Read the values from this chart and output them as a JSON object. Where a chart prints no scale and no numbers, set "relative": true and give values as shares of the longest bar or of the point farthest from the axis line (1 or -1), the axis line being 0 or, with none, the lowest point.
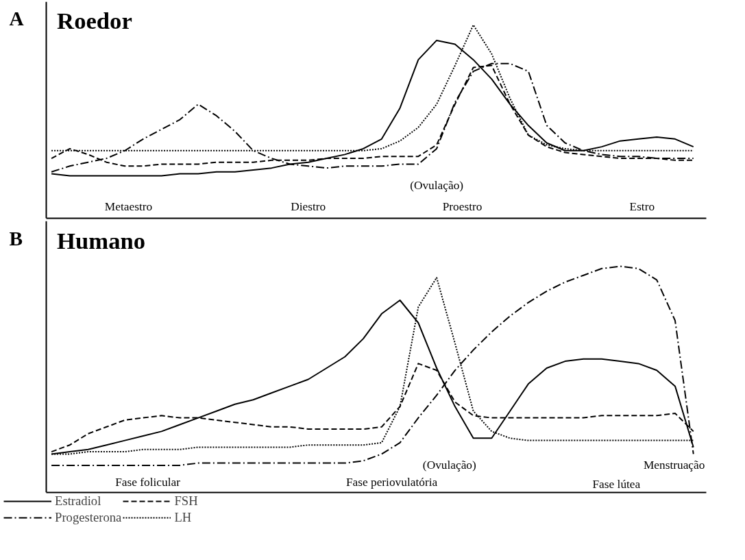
{
  "chart_data": [
    {
      "type": "line",
      "title": "Roedor",
      "relative": true,
      "categories": [
        null,
        null,
        null,
        null,
        null,
        null,
        null,
        null,
        null,
        null,
        null,
        null,
        null,
        null,
        null,
        null,
        null,
        null,
        null,
        null,
        null,
        null,
        null,
        null,
        null,
        null,
        null,
        null,
        null,
        null,
        null,
        null,
        null,
        null,
        null,
        null
      ],
      "annotations": [
        "A",
        "Metaestro",
        "Diestro",
        "Proestro",
        "Estro",
        "(Ovulação)"
      ],
      "series": [
        {
          "color": "#000000",
          "line_style": "solid",
          "values": [
            0.23,
            0.22,
            0.22,
            0.22,
            0.22,
            0.22,
            0.22,
            0.23,
            0.23,
            0.24,
            0.24,
            0.25,
            0.26,
            0.28,
            0.29,
            0.31,
            0.33,
            0.36,
            0.41,
            0.57,
            0.82,
            0.92,
            0.9,
            0.82,
            0.72,
            0.59,
            0.48,
            0.39,
            0.35,
            0.35,
            0.37,
            0.4,
            0.41,
            0.42,
            0.41,
            0.37
          ]
        },
        {
          "color": "#000000",
          "line_style": "dashed",
          "values": [
            0.31,
            0.36,
            0.33,
            0.29,
            0.27,
            0.27,
            0.28,
            0.28,
            0.28,
            0.29,
            0.29,
            0.29,
            0.3,
            0.3,
            0.3,
            0.31,
            0.31,
            0.31,
            0.32,
            0.32,
            0.32,
            0.38,
            0.59,
            0.78,
            0.79,
            0.59,
            0.43,
            0.37,
            0.34,
            0.33,
            0.32,
            0.31,
            0.31,
            0.31,
            0.3,
            0.3
          ]
        },
        {
          "color": "#000000",
          "line_style": "dashdot",
          "values": [
            0.24,
            0.27,
            0.29,
            0.31,
            0.35,
            0.41,
            0.46,
            0.51,
            0.59,
            0.53,
            0.45,
            0.35,
            0.31,
            0.28,
            0.27,
            0.26,
            0.27,
            0.27,
            0.27,
            0.28,
            0.28,
            0.36,
            0.6,
            0.76,
            0.8,
            0.8,
            0.76,
            0.48,
            0.39,
            0.35,
            0.33,
            0.32,
            0.32,
            0.31,
            0.31,
            0.31
          ]
        },
        {
          "color": "#000000",
          "line_style": "dotted",
          "values": [
            0.35,
            0.35,
            0.35,
            0.35,
            0.35,
            0.35,
            0.35,
            0.35,
            0.35,
            0.35,
            0.35,
            0.35,
            0.35,
            0.35,
            0.35,
            0.35,
            0.35,
            0.35,
            0.36,
            0.4,
            0.47,
            0.59,
            0.79,
            1.0,
            0.85,
            0.62,
            0.43,
            0.38,
            0.36,
            0.35,
            0.35,
            0.35,
            0.35,
            0.35,
            0.35,
            0.35
          ]
        }
      ]
    },
    {
      "type": "line",
      "title": "Humano",
      "relative": true,
      "legend": "bottom",
      "categories": [
        null,
        null,
        null,
        null,
        null,
        null,
        null,
        null,
        null,
        null,
        null,
        null,
        null,
        null,
        null,
        null,
        null,
        null,
        null,
        null,
        null,
        null,
        null,
        null,
        null,
        null,
        null,
        null,
        null,
        null,
        null,
        null,
        null,
        null,
        null,
        null
      ],
      "annotations": [
        "B",
        "Fase folicular",
        "Fase periovulatória",
        "Fase lútea",
        "(Ovulação)",
        "Menstruação"
      ],
      "series": [
        {
          "name": "Estradiol",
          "color": "#000000",
          "line_style": "solid",
          "values": [
            0.17,
            0.18,
            0.19,
            0.21,
            0.23,
            0.25,
            0.27,
            0.3,
            0.33,
            0.36,
            0.39,
            0.41,
            0.44,
            0.47,
            0.5,
            0.55,
            0.6,
            0.68,
            0.79,
            0.85,
            0.75,
            0.55,
            0.38,
            0.24,
            0.24,
            0.36,
            0.48,
            0.55,
            0.58,
            0.59,
            0.59,
            0.58,
            0.57,
            0.54,
            0.47,
            0.2
          ]
        },
        {
          "name": "FSH",
          "color": "#000000",
          "line_style": "dashed",
          "values": [
            0.18,
            0.21,
            0.26,
            0.29,
            0.32,
            0.33,
            0.34,
            0.33,
            0.33,
            0.32,
            0.31,
            0.3,
            0.29,
            0.29,
            0.28,
            0.28,
            0.28,
            0.28,
            0.29,
            0.38,
            0.57,
            0.54,
            0.4,
            0.34,
            0.33,
            0.33,
            0.33,
            0.33,
            0.33,
            0.33,
            0.34,
            0.34,
            0.34,
            0.34,
            0.35,
            0.27
          ]
        },
        {
          "name": "Progesterona",
          "color": "#000000",
          "line_style": "dashdot",
          "values": [
            0.12,
            0.12,
            0.12,
            0.12,
            0.12,
            0.12,
            0.12,
            0.12,
            0.13,
            0.13,
            0.13,
            0.13,
            0.13,
            0.13,
            0.13,
            0.13,
            0.13,
            0.14,
            0.17,
            0.22,
            0.33,
            0.43,
            0.54,
            0.63,
            0.71,
            0.78,
            0.84,
            0.89,
            0.93,
            0.96,
            0.99,
            1.0,
            0.99,
            0.94,
            0.76,
            0.17
          ]
        },
        {
          "name": "LH",
          "color": "#000000",
          "line_style": "dotted",
          "values": [
            0.17,
            0.17,
            0.18,
            0.18,
            0.18,
            0.19,
            0.19,
            0.19,
            0.2,
            0.2,
            0.2,
            0.2,
            0.2,
            0.2,
            0.21,
            0.21,
            0.21,
            0.21,
            0.22,
            0.38,
            0.82,
            0.95,
            0.66,
            0.36,
            0.27,
            0.24,
            0.23,
            0.23,
            0.23,
            0.23,
            0.23,
            0.23,
            0.23,
            0.23,
            0.23,
            0.23
          ]
        }
      ]
    }
  ]
}
